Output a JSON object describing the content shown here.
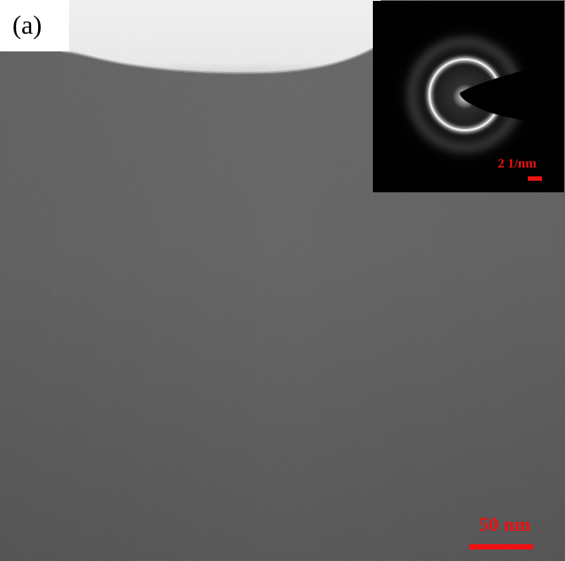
{
  "panel_label": "(a)",
  "inset": {
    "scale_label": "2 1/nm"
  },
  "main": {
    "scale_label": "50 nm"
  },
  "colors": {
    "scale_bar": "#ee1111",
    "film": "#5d5d5d",
    "vacuum": "#f4f4f4",
    "inset_background": "#000000"
  },
  "icons": {
    "diffraction_pattern": "saed-ring-pattern",
    "beam_stop": "beam-stop-shadow"
  }
}
